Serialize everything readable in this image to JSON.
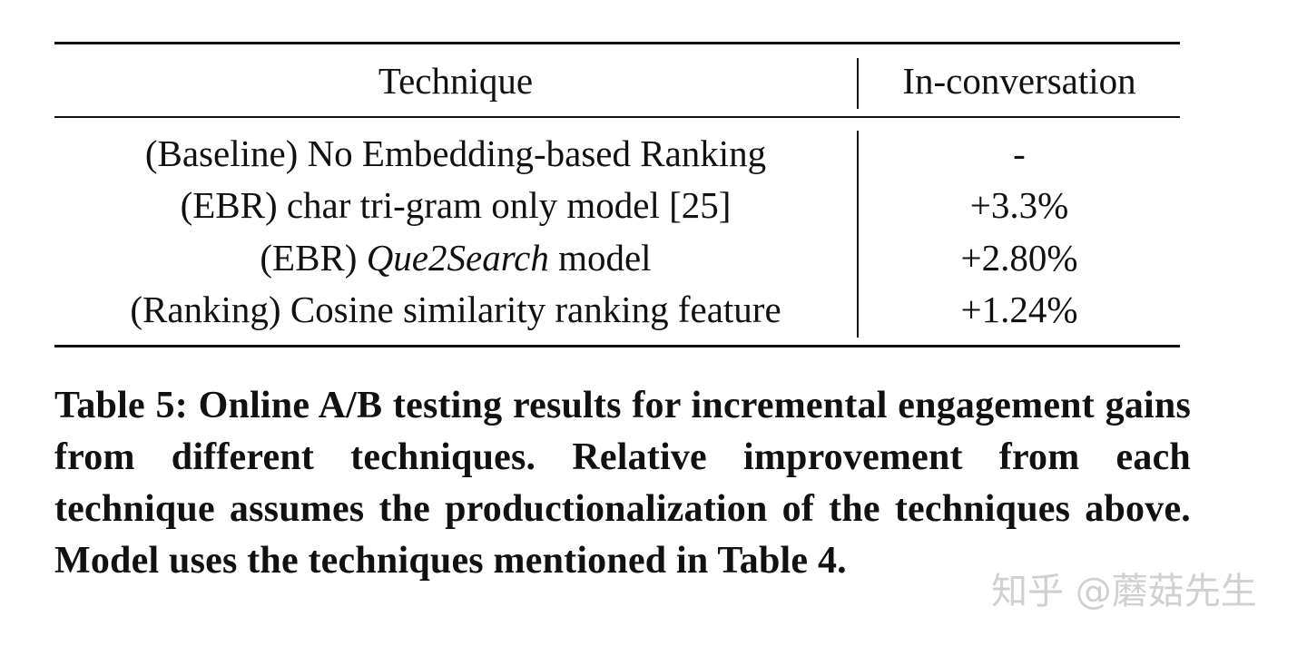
{
  "table": {
    "headers": [
      "Technique",
      "In-conversation"
    ],
    "rows": [
      {
        "prefix": "(Baseline) No Embedding-based Ranking",
        "italic": "",
        "suffix": "",
        "value": "-"
      },
      {
        "prefix": "(EBR) char tri-gram only model [25]",
        "italic": "",
        "suffix": "",
        "value": "+3.3%"
      },
      {
        "prefix": "(EBR) ",
        "italic": "Que2Search",
        "suffix": " model",
        "value": "+2.80%"
      },
      {
        "prefix": "(Ranking) Cosine similarity ranking feature",
        "italic": "",
        "suffix": "",
        "value": "+1.24%"
      }
    ]
  },
  "caption": "Table 5: Online A/B testing results for incremental engagement gains from different techniques. Relative improvement from each technique assumes the productionalization of the techniques above. Model uses the techniques mentioned in Table 4.",
  "watermark": "知乎 @蘑菇先生"
}
